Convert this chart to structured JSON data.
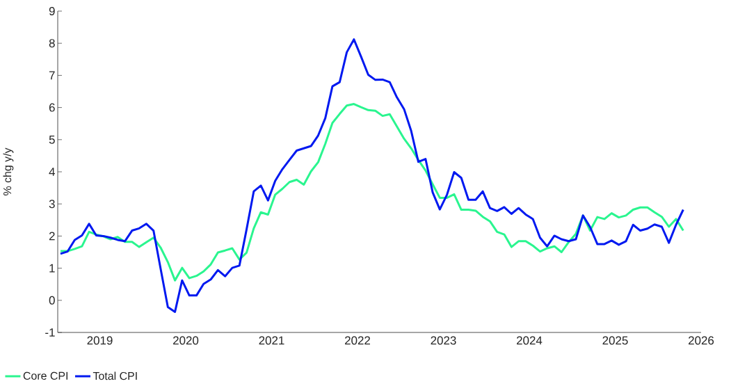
{
  "chart_data": {
    "type": "line",
    "ylabel": "% chg y/y",
    "x": [
      2018.542,
      2018.625,
      2018.708,
      2018.792,
      2018.875,
      2018.958,
      2019.042,
      2019.125,
      2019.208,
      2019.292,
      2019.375,
      2019.458,
      2019.542,
      2019.625,
      2019.708,
      2019.792,
      2019.875,
      2019.958,
      2020.042,
      2020.125,
      2020.208,
      2020.292,
      2020.375,
      2020.458,
      2020.542,
      2020.625,
      2020.708,
      2020.792,
      2020.875,
      2020.958,
      2021.042,
      2021.125,
      2021.208,
      2021.292,
      2021.375,
      2021.458,
      2021.542,
      2021.625,
      2021.708,
      2021.792,
      2021.875,
      2021.958,
      2022.042,
      2022.125,
      2022.208,
      2022.292,
      2022.375,
      2022.458,
      2022.542,
      2022.625,
      2022.708,
      2022.792,
      2022.875,
      2022.958,
      2023.042,
      2023.125,
      2023.208,
      2023.292,
      2023.375,
      2023.458,
      2023.542,
      2023.625,
      2023.708,
      2023.792,
      2023.875,
      2023.958,
      2024.042,
      2024.125,
      2024.208,
      2024.292,
      2024.375,
      2024.458,
      2024.542,
      2024.625,
      2024.708,
      2024.792,
      2024.875,
      2024.958,
      2025.042,
      2025.125,
      2025.208,
      2025.292,
      2025.375,
      2025.458,
      2025.542,
      2025.625,
      2025.708,
      2025.792
    ],
    "series": [
      {
        "name": "Core CPI",
        "color": "#2af58f",
        "values": [
          1.53,
          1.53,
          1.6,
          1.68,
          2.13,
          2.05,
          1.99,
          1.9,
          1.97,
          1.82,
          1.82,
          1.66,
          1.81,
          1.95,
          1.64,
          1.19,
          0.62,
          1.01,
          0.69,
          0.76,
          0.9,
          1.12,
          1.49,
          1.55,
          1.62,
          1.27,
          1.48,
          2.24,
          2.74,
          2.67,
          3.29,
          3.47,
          3.68,
          3.75,
          3.6,
          4.01,
          4.3,
          4.87,
          5.52,
          5.8,
          6.06,
          6.11,
          6.01,
          5.92,
          5.9,
          5.74,
          5.79,
          5.41,
          5.03,
          4.73,
          4.37,
          4.04,
          3.61,
          3.19,
          3.19,
          3.3,
          2.82,
          2.82,
          2.79,
          2.6,
          2.46,
          2.13,
          2.05,
          1.66,
          1.84,
          1.84,
          1.7,
          1.52,
          1.62,
          1.68,
          1.5,
          1.81,
          2.07,
          2.64,
          2.17,
          2.59,
          2.53,
          2.71,
          2.58,
          2.64,
          2.82,
          2.89,
          2.89,
          2.74,
          2.6,
          2.29,
          2.53,
          2.17
        ]
      },
      {
        "name": "Total CPI",
        "color": "#0019f0",
        "values": [
          1.45,
          1.52,
          1.88,
          2.02,
          2.38,
          2.02,
          2.0,
          1.95,
          1.88,
          1.84,
          2.17,
          2.24,
          2.38,
          2.17,
          0.98,
          -0.21,
          -0.36,
          0.62,
          0.15,
          0.15,
          0.51,
          0.65,
          0.94,
          0.75,
          1.01,
          1.08,
          2.2,
          3.39,
          3.57,
          3.11,
          3.72,
          4.08,
          4.37,
          4.66,
          4.73,
          4.8,
          5.13,
          5.67,
          6.66,
          6.79,
          7.72,
          8.12,
          7.58,
          7.02,
          6.86,
          6.87,
          6.79,
          6.32,
          5.95,
          5.27,
          4.31,
          4.4,
          3.36,
          2.83,
          3.29,
          3.99,
          3.81,
          3.13,
          3.13,
          3.39,
          2.87,
          2.78,
          2.9,
          2.69,
          2.87,
          2.67,
          2.53,
          1.95,
          1.68,
          2.01,
          1.9,
          1.84,
          1.9,
          2.64,
          2.28,
          1.75,
          1.75,
          1.86,
          1.73,
          1.84,
          2.35,
          2.17,
          2.23,
          2.36,
          2.29,
          1.79,
          2.35,
          2.82
        ]
      }
    ],
    "xlim": [
      2018.51,
      2026
    ],
    "xticks": [
      2019,
      2020,
      2021,
      2022,
      2023,
      2024,
      2025,
      2026
    ],
    "ylim": [
      -1,
      9
    ],
    "yticks": [
      -1,
      0,
      1,
      2,
      3,
      4,
      5,
      6,
      7,
      8,
      9
    ],
    "legend": "bottom left",
    "marker": "none",
    "line_style": "solid"
  }
}
